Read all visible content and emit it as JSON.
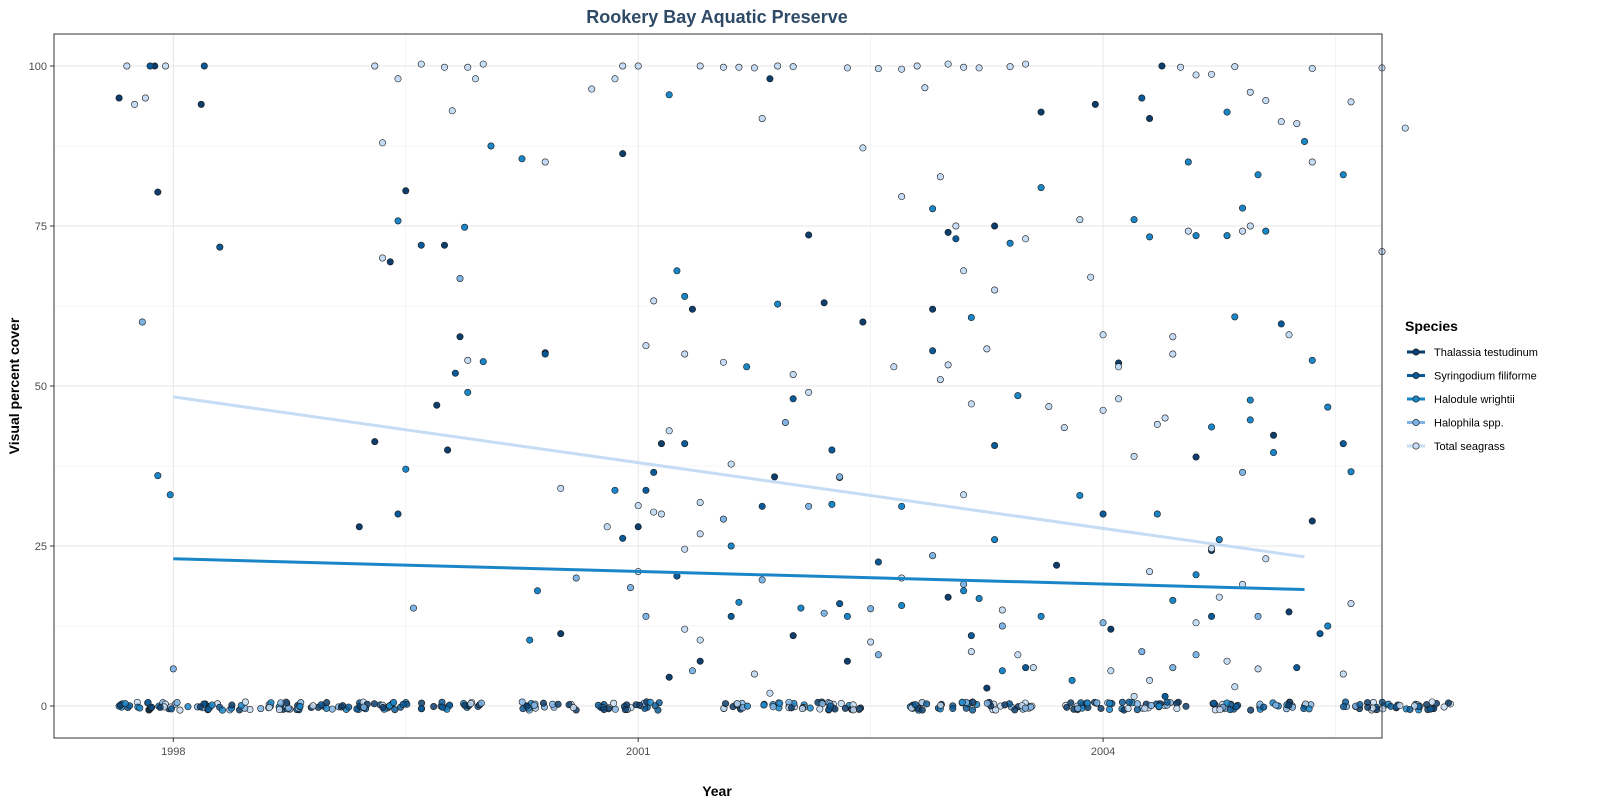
{
  "chart_data": {
    "type": "scatter",
    "title": "Rookery Bay Aquatic Preserve",
    "xlabel": "Year",
    "ylabel": "Visual percent cover",
    "xlim": [
      1997.23,
      2005.8
    ],
    "ylim": [
      -5,
      105
    ],
    "x_ticks": [
      1998,
      2001,
      2004
    ],
    "y_ticks": [
      0,
      25,
      50,
      75,
      100
    ],
    "grid": true,
    "legend": {
      "title": "Species",
      "position": "right",
      "entries": [
        {
          "name": "Thalassia testudinum",
          "color": "#0d3d6b"
        },
        {
          "name": "Syringodium filiforme",
          "color": "#0b5a98"
        },
        {
          "name": "Halodule wrightii",
          "color": "#1a86c8"
        },
        {
          "name": "Halophila spp.",
          "color": "#7fb5e6"
        },
        {
          "name": "Total seagrass",
          "color": "#c5dcf5"
        }
      ]
    },
    "trend_lines": [
      {
        "name": "Total seagrass",
        "x": [
          1998.0,
          2005.3
        ],
        "y": [
          48.3,
          23.3
        ]
      },
      {
        "name": "Halodule wrightii",
        "x": [
          1998.0,
          2005.3
        ],
        "y": [
          23.0,
          18.2
        ]
      }
    ],
    "series": [
      {
        "name": "Thalassia testudinum",
        "points": [
          [
            1997.65,
            95
          ],
          [
            1997.88,
            100
          ],
          [
            1997.9,
            80.3
          ],
          [
            1998.18,
            94
          ],
          [
            1999.2,
            28
          ],
          [
            1999.3,
            41.3
          ],
          [
            1999.4,
            69.4
          ],
          [
            1999.5,
            80.5
          ],
          [
            1999.7,
            47
          ],
          [
            1999.75,
            72
          ],
          [
            1999.85,
            57.7
          ],
          [
            2000.4,
            55.2
          ],
          [
            2000.9,
            86.3
          ],
          [
            2001.0,
            28
          ],
          [
            2001.15,
            41
          ],
          [
            2001.35,
            62
          ],
          [
            2001.85,
            98
          ],
          [
            2001.88,
            35.8
          ],
          [
            2002.1,
            73.6
          ],
          [
            2002.2,
            63
          ],
          [
            2002.3,
            35.7
          ],
          [
            2002.45,
            60
          ],
          [
            2002.9,
            62
          ],
          [
            2003.0,
            74
          ],
          [
            2003.3,
            75
          ],
          [
            2003.6,
            92.8
          ],
          [
            2003.95,
            94
          ],
          [
            2004.1,
            53.6
          ],
          [
            2004.3,
            91.8
          ],
          [
            2004.38,
            100
          ],
          [
            2004.6,
            38.9
          ],
          [
            2004.7,
            24.3
          ],
          [
            2005.1,
            42.3
          ],
          [
            2005.2,
            14.7
          ],
          [
            2005.35,
            28.9
          ],
          [
            1999.77,
            40
          ],
          [
            2000.5,
            11.3
          ],
          [
            2003.7,
            22
          ],
          [
            2001.2,
            4.5
          ],
          [
            2001.4,
            7
          ],
          [
            2002.0,
            11
          ],
          [
            2002.35,
            7
          ],
          [
            2003.0,
            17
          ],
          [
            2004.05,
            12
          ],
          [
            2003.25,
            2.8
          ]
        ]
      },
      {
        "name": "Syringodium filiforme",
        "points": [
          [
            1997.85,
            100
          ],
          [
            1998.2,
            100
          ],
          [
            1998.3,
            71.7
          ],
          [
            1999.45,
            30
          ],
          [
            1999.82,
            52
          ],
          [
            1999.6,
            72
          ],
          [
            2000.4,
            55
          ],
          [
            2000.9,
            26.2
          ],
          [
            2001.1,
            36.5
          ],
          [
            2001.3,
            41
          ],
          [
            2001.8,
            31.2
          ],
          [
            2002.0,
            48
          ],
          [
            2002.25,
            40
          ],
          [
            2002.9,
            55.5
          ],
          [
            2003.05,
            73
          ],
          [
            2003.3,
            40.7
          ],
          [
            2004.0,
            30
          ],
          [
            2004.25,
            95
          ],
          [
            2004.7,
            14
          ],
          [
            2005.15,
            59.7
          ],
          [
            2005.25,
            6
          ],
          [
            2005.4,
            11.3
          ],
          [
            2005.55,
            41
          ],
          [
            2001.05,
            33.7
          ],
          [
            2001.6,
            14
          ],
          [
            2001.25,
            20.3
          ],
          [
            2002.3,
            16
          ],
          [
            2002.55,
            22.5
          ],
          [
            2003.15,
            11
          ],
          [
            2003.5,
            6
          ],
          [
            2004.4,
            1.5
          ]
        ]
      },
      {
        "name": "Halodule wrightii",
        "points": [
          [
            1997.9,
            36
          ],
          [
            1997.98,
            33
          ],
          [
            1999.45,
            75.8
          ],
          [
            1999.5,
            37
          ],
          [
            1999.88,
            74.8
          ],
          [
            1999.9,
            49
          ],
          [
            2000.0,
            53.8
          ],
          [
            2000.05,
            87.5
          ],
          [
            2000.25,
            85.5
          ],
          [
            2000.3,
            10.3
          ],
          [
            2000.35,
            18
          ],
          [
            2000.85,
            33.7
          ],
          [
            2001.2,
            95.5
          ],
          [
            2001.25,
            68
          ],
          [
            2001.3,
            64
          ],
          [
            2001.65,
            16.2
          ],
          [
            2001.7,
            53
          ],
          [
            2001.9,
            62.8
          ],
          [
            2002.05,
            15.3
          ],
          [
            2002.25,
            31.5
          ],
          [
            2002.35,
            14
          ],
          [
            2002.7,
            31.2
          ],
          [
            2002.9,
            77.7
          ],
          [
            2003.15,
            60.7
          ],
          [
            2003.4,
            72.3
          ],
          [
            2003.6,
            81
          ],
          [
            2003.1,
            18
          ],
          [
            2003.3,
            26
          ],
          [
            2003.45,
            48.5
          ],
          [
            2003.2,
            16.8
          ],
          [
            2003.6,
            14
          ],
          [
            2003.35,
            5.5
          ],
          [
            2003.85,
            32.9
          ],
          [
            2004.2,
            76
          ],
          [
            2004.35,
            30
          ],
          [
            2004.45,
            16.5
          ],
          [
            2004.6,
            20.5
          ],
          [
            2004.75,
            26
          ],
          [
            2004.8,
            73.5
          ],
          [
            2004.8,
            92.8
          ],
          [
            2004.3,
            73.3
          ],
          [
            2004.6,
            73.5
          ],
          [
            2004.55,
            85
          ],
          [
            2004.9,
            77.8
          ],
          [
            2004.95,
            47.8
          ],
          [
            2005.0,
            83
          ],
          [
            2005.05,
            74.2
          ],
          [
            2005.3,
            88.2
          ],
          [
            2005.35,
            54
          ],
          [
            2005.45,
            46.7
          ],
          [
            2005.55,
            83
          ],
          [
            2005.6,
            36.6
          ],
          [
            2005.45,
            12.5
          ],
          [
            2004.85,
            60.8
          ],
          [
            2004.95,
            44.7
          ],
          [
            2005.1,
            39.6
          ],
          [
            2004.7,
            43.6
          ],
          [
            2003.8,
            4
          ],
          [
            2002.7,
            15.7
          ],
          [
            2001.6,
            25
          ]
        ]
      },
      {
        "name": "Halophila spp.",
        "points": [
          [
            1997.8,
            60
          ],
          [
            1998.0,
            5.8
          ],
          [
            1999.55,
            15.3
          ],
          [
            1999.85,
            66.8
          ],
          [
            2000.6,
            20
          ],
          [
            2000.95,
            18.5
          ],
          [
            2001.05,
            14
          ],
          [
            2001.35,
            5.5
          ],
          [
            2001.55,
            29.2
          ],
          [
            2001.8,
            19.7
          ],
          [
            2001.95,
            44.3
          ],
          [
            2002.1,
            31.2
          ],
          [
            2002.2,
            14.5
          ],
          [
            2002.3,
            35.8
          ],
          [
            2002.5,
            15.2
          ],
          [
            2002.55,
            8
          ],
          [
            2002.9,
            23.5
          ],
          [
            2003.1,
            19
          ],
          [
            2003.35,
            12.5
          ],
          [
            2004.0,
            13
          ],
          [
            2004.25,
            8.5
          ],
          [
            2004.45,
            6
          ],
          [
            2004.6,
            8
          ],
          [
            2004.9,
            36.5
          ],
          [
            2005.0,
            14
          ]
        ]
      },
      {
        "name": "Total seagrass",
        "points": [
          [
            1997.7,
            100
          ],
          [
            1997.75,
            94
          ],
          [
            1997.82,
            95
          ],
          [
            1997.95,
            100
          ],
          [
            1999.3,
            100
          ],
          [
            1999.35,
            88
          ],
          [
            1999.45,
            98
          ],
          [
            1999.6,
            100.3
          ],
          [
            1999.75,
            99.8
          ],
          [
            1999.8,
            93
          ],
          [
            1999.9,
            99.8
          ],
          [
            1999.95,
            98
          ],
          [
            2000.0,
            100.3
          ],
          [
            2000.7,
            96.4
          ],
          [
            2000.85,
            98
          ],
          [
            2000.9,
            100
          ],
          [
            2001.0,
            100
          ],
          [
            2001.4,
            100
          ],
          [
            2001.55,
            99.8
          ],
          [
            2001.65,
            99.8
          ],
          [
            2001.75,
            99.7
          ],
          [
            2001.8,
            91.8
          ],
          [
            2001.9,
            100
          ],
          [
            2002.0,
            99.9
          ],
          [
            2002.35,
            99.7
          ],
          [
            2002.55,
            99.6
          ],
          [
            2002.7,
            99.5
          ],
          [
            2002.8,
            100
          ],
          [
            2002.85,
            96.6
          ],
          [
            2003.0,
            100.3
          ],
          [
            2003.1,
            99.8
          ],
          [
            2003.2,
            99.7
          ],
          [
            2003.4,
            99.9
          ],
          [
            2003.5,
            100.3
          ],
          [
            2004.5,
            99.8
          ],
          [
            2004.6,
            98.6
          ],
          [
            2004.7,
            98.7
          ],
          [
            2004.85,
            99.9
          ],
          [
            2004.95,
            95.9
          ],
          [
            2005.05,
            94.6
          ],
          [
            2005.15,
            91.3
          ],
          [
            2005.25,
            91
          ],
          [
            2005.35,
            99.6
          ],
          [
            2005.6,
            94.4
          ],
          [
            2005.8,
            99.7
          ],
          [
            2005.95,
            90.3
          ],
          [
            2005.35,
            85
          ],
          [
            2002.45,
            87.2
          ],
          [
            2002.7,
            79.6
          ],
          [
            2002.95,
            82.7
          ],
          [
            2003.05,
            75
          ],
          [
            2003.1,
            68
          ],
          [
            2003.3,
            65
          ],
          [
            2003.5,
            73
          ],
          [
            2003.85,
            76
          ],
          [
            2003.92,
            67
          ],
          [
            2004.0,
            58
          ],
          [
            2004.1,
            53
          ],
          [
            2004.1,
            48
          ],
          [
            2004.45,
            57.7
          ],
          [
            2004.55,
            74.2
          ],
          [
            2004.9,
            74.2
          ],
          [
            2004.95,
            75
          ],
          [
            2005.2,
            58
          ],
          [
            2005.8,
            71
          ],
          [
            1999.35,
            70
          ],
          [
            1999.9,
            54
          ],
          [
            2000.4,
            85
          ],
          [
            2000.5,
            34
          ],
          [
            2000.8,
            28
          ],
          [
            2001.0,
            31.3
          ],
          [
            2001.1,
            30.3
          ],
          [
            2001.15,
            30
          ],
          [
            2001.05,
            56.3
          ],
          [
            2001.1,
            63.3
          ],
          [
            2001.2,
            43
          ],
          [
            2001.3,
            55
          ],
          [
            2001.4,
            31.8
          ],
          [
            2001.55,
            53.7
          ],
          [
            2002.0,
            51.8
          ],
          [
            2002.1,
            49
          ],
          [
            2002.65,
            53
          ],
          [
            2002.95,
            51
          ],
          [
            2003.0,
            53.3
          ],
          [
            2003.15,
            47.2
          ],
          [
            2003.25,
            55.8
          ],
          [
            2003.65,
            46.8
          ],
          [
            2003.75,
            43.5
          ],
          [
            2004.0,
            46.2
          ],
          [
            2004.2,
            39
          ],
          [
            2004.35,
            44
          ],
          [
            2004.4,
            45
          ],
          [
            2004.45,
            55
          ],
          [
            2004.3,
            21
          ],
          [
            2004.6,
            13
          ],
          [
            2004.75,
            17
          ],
          [
            2004.9,
            19
          ],
          [
            2005.05,
            23
          ],
          [
            2005.6,
            16
          ],
          [
            2001.4,
            26.9
          ],
          [
            2001.3,
            24.5
          ],
          [
            2001.0,
            21
          ],
          [
            2001.6,
            37.8
          ],
          [
            2001.3,
            12
          ],
          [
            2001.4,
            10.3
          ],
          [
            2002.5,
            10
          ],
          [
            2002.7,
            20
          ],
          [
            2003.15,
            8.5
          ],
          [
            2003.35,
            15
          ],
          [
            2003.45,
            8
          ],
          [
            2003.1,
            33
          ],
          [
            2003.55,
            6
          ],
          [
            2004.05,
            5.5
          ],
          [
            2004.3,
            4
          ],
          [
            2004.7,
            24.6
          ],
          [
            2004.8,
            7
          ],
          [
            2004.85,
            3
          ],
          [
            2004.2,
            1.5
          ],
          [
            2005.0,
            5.8
          ],
          [
            2005.55,
            5
          ],
          [
            2001.75,
            5
          ],
          [
            2001.85,
            2
          ]
        ]
      }
    ],
    "zero_clusters": [
      {
        "x": [
          1997.65,
          2000.0
        ]
      },
      {
        "x": [
          2000.25,
          2000.6
        ]
      },
      {
        "x": [
          2000.7,
          2001.15
        ]
      },
      {
        "x": [
          2001.55,
          2002.45
        ]
      },
      {
        "x": [
          2002.75,
          2003.55
        ]
      },
      {
        "x": [
          2003.75,
          2004.55
        ]
      },
      {
        "x": [
          2004.7,
          2005.35
        ]
      },
      {
        "x": [
          2005.55,
          2006.25
        ]
      }
    ]
  }
}
